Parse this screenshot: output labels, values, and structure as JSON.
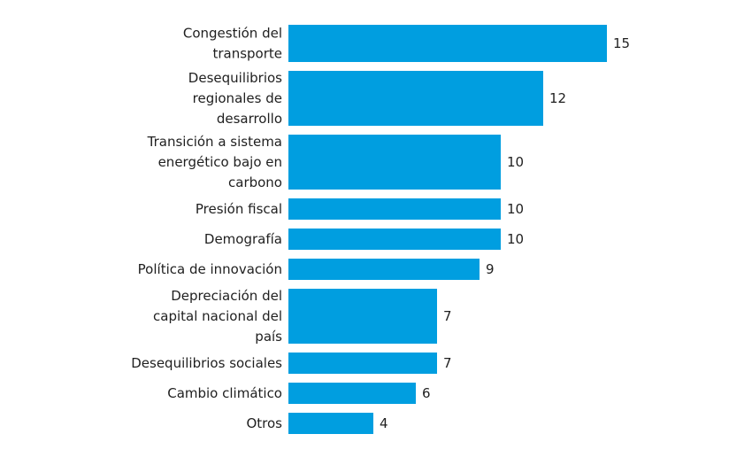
{
  "chart_data": {
    "type": "bar",
    "orientation": "horizontal",
    "categories": [
      [
        "Congestión del",
        "transporte"
      ],
      [
        "Desequilibrios",
        "regionales de",
        "desarrollo"
      ],
      [
        "Transición a sistema",
        "energético bajo en",
        "carbono"
      ],
      [
        "Presión fiscal"
      ],
      [
        "Demografía"
      ],
      [
        "Política de innovación"
      ],
      [
        "Depreciación del",
        "capital nacional del",
        "país"
      ],
      [
        "Desequilibrios sociales"
      ],
      [
        "Cambio climático"
      ],
      [
        "Otros"
      ]
    ],
    "values": [
      15,
      12,
      10,
      10,
      10,
      9,
      7,
      7,
      6,
      4
    ],
    "title": "",
    "xlabel": "",
    "ylabel": "",
    "xlim": [
      0,
      15
    ],
    "grid": false,
    "legend": "none",
    "bar_color": "#009ee0",
    "text_color": "#1f1f1f"
  }
}
